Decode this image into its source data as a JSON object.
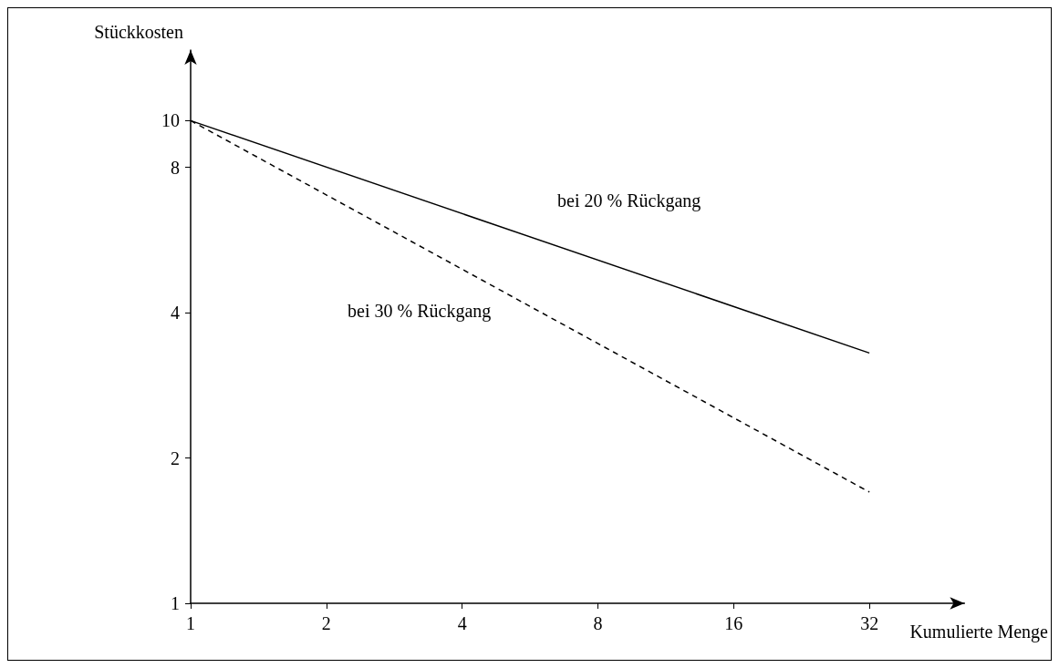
{
  "chart_data": {
    "type": "line",
    "xlabel": "Kumulierte Menge",
    "ylabel": "Stückkosten",
    "log": "xy",
    "x": [
      1,
      32
    ],
    "xlim": [
      1,
      52
    ],
    "xticks": [
      1,
      2,
      4,
      8,
      16,
      32
    ],
    "ylim": [
      1,
      14
    ],
    "yticks": [
      1,
      2,
      4,
      8,
      10
    ],
    "grid": false,
    "marker": "none",
    "series": [
      {
        "name": "bei 20 % Rückgang",
        "color": "#000000",
        "line_style": "solid",
        "values": [
          10,
          3.3
        ]
      },
      {
        "name": "bei 30 % Rückgang",
        "color": "#000000",
        "line_style": "dashed",
        "values": [
          10,
          1.7
        ]
      }
    ]
  }
}
